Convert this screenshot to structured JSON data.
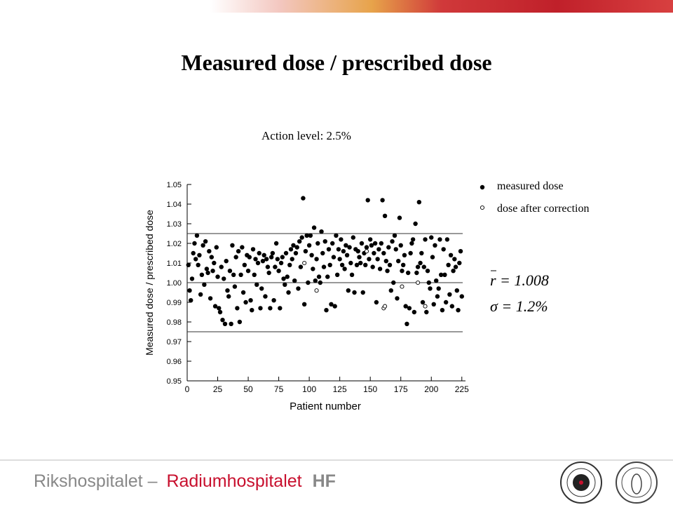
{
  "chart_data": {
    "type": "scatter",
    "title": "Measured dose / prescribed dose",
    "subtitle": "Action level: 2.5%",
    "xlabel": "Patient number",
    "ylabel": "Measured dose / prescribed dose",
    "xlim": [
      0,
      228
    ],
    "ylim": [
      0.95,
      1.05
    ],
    "xticks": [
      0,
      25,
      50,
      75,
      100,
      125,
      150,
      175,
      200,
      225
    ],
    "yticks": [
      0.95,
      0.96,
      0.97,
      0.98,
      0.99,
      {
        "value": 1,
        "label": "1.00"
      },
      1.01,
      1.02,
      1.03,
      1.04,
      1.05
    ],
    "reference_lines": [
      0.975,
      1,
      1.025
    ],
    "stats": [
      "r = 1.008",
      "σ = 1.2%"
    ],
    "series": [
      {
        "name": "measured dose",
        "color": "#000000",
        "marker": "filled",
        "x": [
          1,
          2,
          3,
          4,
          5,
          6,
          7,
          8,
          9,
          10,
          11,
          12,
          13,
          14,
          15,
          16,
          17,
          18,
          19,
          20,
          21,
          22,
          23,
          24,
          25,
          26,
          27,
          28,
          29,
          30,
          31,
          32,
          33,
          34,
          35,
          36,
          37,
          38,
          39,
          40,
          41,
          42,
          43,
          44,
          45,
          46,
          47,
          48,
          49,
          50,
          51,
          52,
          53,
          54,
          55,
          56,
          57,
          58,
          59,
          60,
          61,
          62,
          63,
          64,
          65,
          66,
          67,
          68,
          69,
          70,
          71,
          72,
          73,
          74,
          75,
          76,
          77,
          78,
          79,
          80,
          81,
          82,
          83,
          84,
          85,
          86,
          87,
          88,
          89,
          90,
          91,
          92,
          93,
          94,
          95,
          96,
          97,
          98,
          99,
          100,
          101,
          102,
          103,
          104,
          105,
          106,
          107,
          108,
          109,
          110,
          111,
          112,
          113,
          114,
          115,
          116,
          117,
          118,
          119,
          120,
          121,
          122,
          123,
          124,
          125,
          126,
          127,
          128,
          129,
          130,
          131,
          132,
          133,
          134,
          135,
          136,
          137,
          138,
          139,
          140,
          141,
          142,
          143,
          144,
          145,
          146,
          147,
          148,
          149,
          150,
          151,
          152,
          153,
          154,
          155,
          156,
          157,
          158,
          159,
          160,
          161,
          162,
          163,
          164,
          165,
          166,
          167,
          168,
          169,
          170,
          171,
          172,
          173,
          174,
          175,
          176,
          177,
          178,
          179,
          180,
          181,
          182,
          183,
          184,
          185,
          186,
          187,
          188,
          189,
          190,
          191,
          192,
          193,
          194,
          195,
          196,
          197,
          198,
          199,
          200,
          201,
          202,
          203,
          204,
          205,
          206,
          207,
          208,
          209,
          210,
          211,
          212,
          213,
          214,
          215,
          216,
          217,
          218,
          219,
          220,
          221,
          222,
          223,
          224,
          225
        ],
        "values": [
          1.009,
          0.996,
          0.991,
          1.002,
          1.015,
          1.02,
          1.012,
          1.024,
          1.009,
          1.014,
          0.994,
          1.004,
          1.019,
          0.999,
          1.021,
          1.007,
          1.005,
          1.016,
          0.992,
          1.013,
          1.006,
          1.01,
          0.988,
          1.018,
          1.003,
          0.987,
          0.985,
          1.008,
          0.981,
          1.002,
          0.979,
          1.011,
          0.996,
          0.993,
          1.006,
          0.979,
          1.019,
          1.004,
          0.998,
          1.013,
          0.987,
          1.016,
          0.98,
          1.004,
          1.018,
          0.995,
          1.009,
          0.99,
          1.014,
          1.006,
          1.013,
          0.991,
          0.986,
          1.017,
          1.004,
          1.012,
          0.999,
          1.01,
          1.015,
          0.987,
          0.997,
          1.011,
          1.014,
          0.993,
          1.012,
          1.008,
          1.005,
          0.987,
          1.013,
          1.015,
          0.991,
          1.008,
          1.02,
          1.012,
          1.006,
          0.987,
          1.01,
          1.013,
          1.002,
          0.999,
          1.015,
          1.003,
          0.995,
          1.009,
          1.017,
          1.012,
          1.019,
          1.001,
          1.015,
          1.018,
          0.997,
          1.021,
          1.008,
          1.023,
          1.043,
          0.989,
          1.016,
          1.024,
          1.0,
          1.019,
          1.024,
          1.014,
          1.007,
          1.028,
          1.001,
          1.012,
          1.02,
          1.003,
          1.0,
          1.026,
          1.015,
          1.008,
          1.021,
          0.986,
          1.003,
          1.017,
          1.009,
          0.989,
          1.02,
          1.013,
          0.988,
          1.024,
          1.004,
          1.017,
          1.012,
          1.022,
          1.009,
          1.016,
          1.007,
          1.019,
          1.014,
          0.996,
          1.018,
          1.01,
          1.004,
          1.023,
          0.995,
          1.017,
          1.009,
          1.016,
          1.013,
          1.01,
          1.02,
          0.995,
          1.015,
          1.009,
          1.018,
          1.042,
          1.012,
          1.022,
          1.019,
          1.008,
          1.015,
          1.02,
          0.99,
          1.012,
          1.017,
          1.007,
          1.02,
          1.042,
          1.015,
          1.034,
          1.011,
          1.006,
          1.018,
          1.009,
          0.996,
          1.021,
          1.0,
          1.024,
          1.017,
          0.992,
          1.011,
          1.033,
          1.019,
          1.006,
          1.009,
          1.014,
          0.988,
          0.979,
          1.005,
          0.987,
          1.015,
          1.02,
          1.022,
          0.985,
          1.03,
          1.005,
          1.008,
          1.041,
          1.01,
          1.015,
          0.99,
          1.008,
          1.022,
          0.985,
          1.006,
          1.0,
          0.997,
          1.023,
          1.013,
          0.989,
          1.019,
          1.001,
          0.993,
          0.997,
          1.022,
          1.004,
          0.986,
          1.017,
          1.004,
          0.99,
          1.022,
          1.009,
          0.994,
          1.014,
          0.988,
          1.006,
          1.012,
          1.008,
          0.996,
          0.986,
          1.01,
          1.016,
          0.993
        ]
      },
      {
        "name": "dose after correction",
        "color": "#000000",
        "marker": "open",
        "x": [
          96,
          106,
          147,
          161,
          162,
          176,
          189,
          195
        ],
        "values": [
          1.01,
          0.996,
          1.016,
          0.987,
          0.988,
          0.998,
          1.0,
          0.988
        ]
      }
    ]
  },
  "footer": {
    "left": "Rikshospitalet –",
    "right": "Radiumhospitalet",
    "suffix": "HF"
  }
}
